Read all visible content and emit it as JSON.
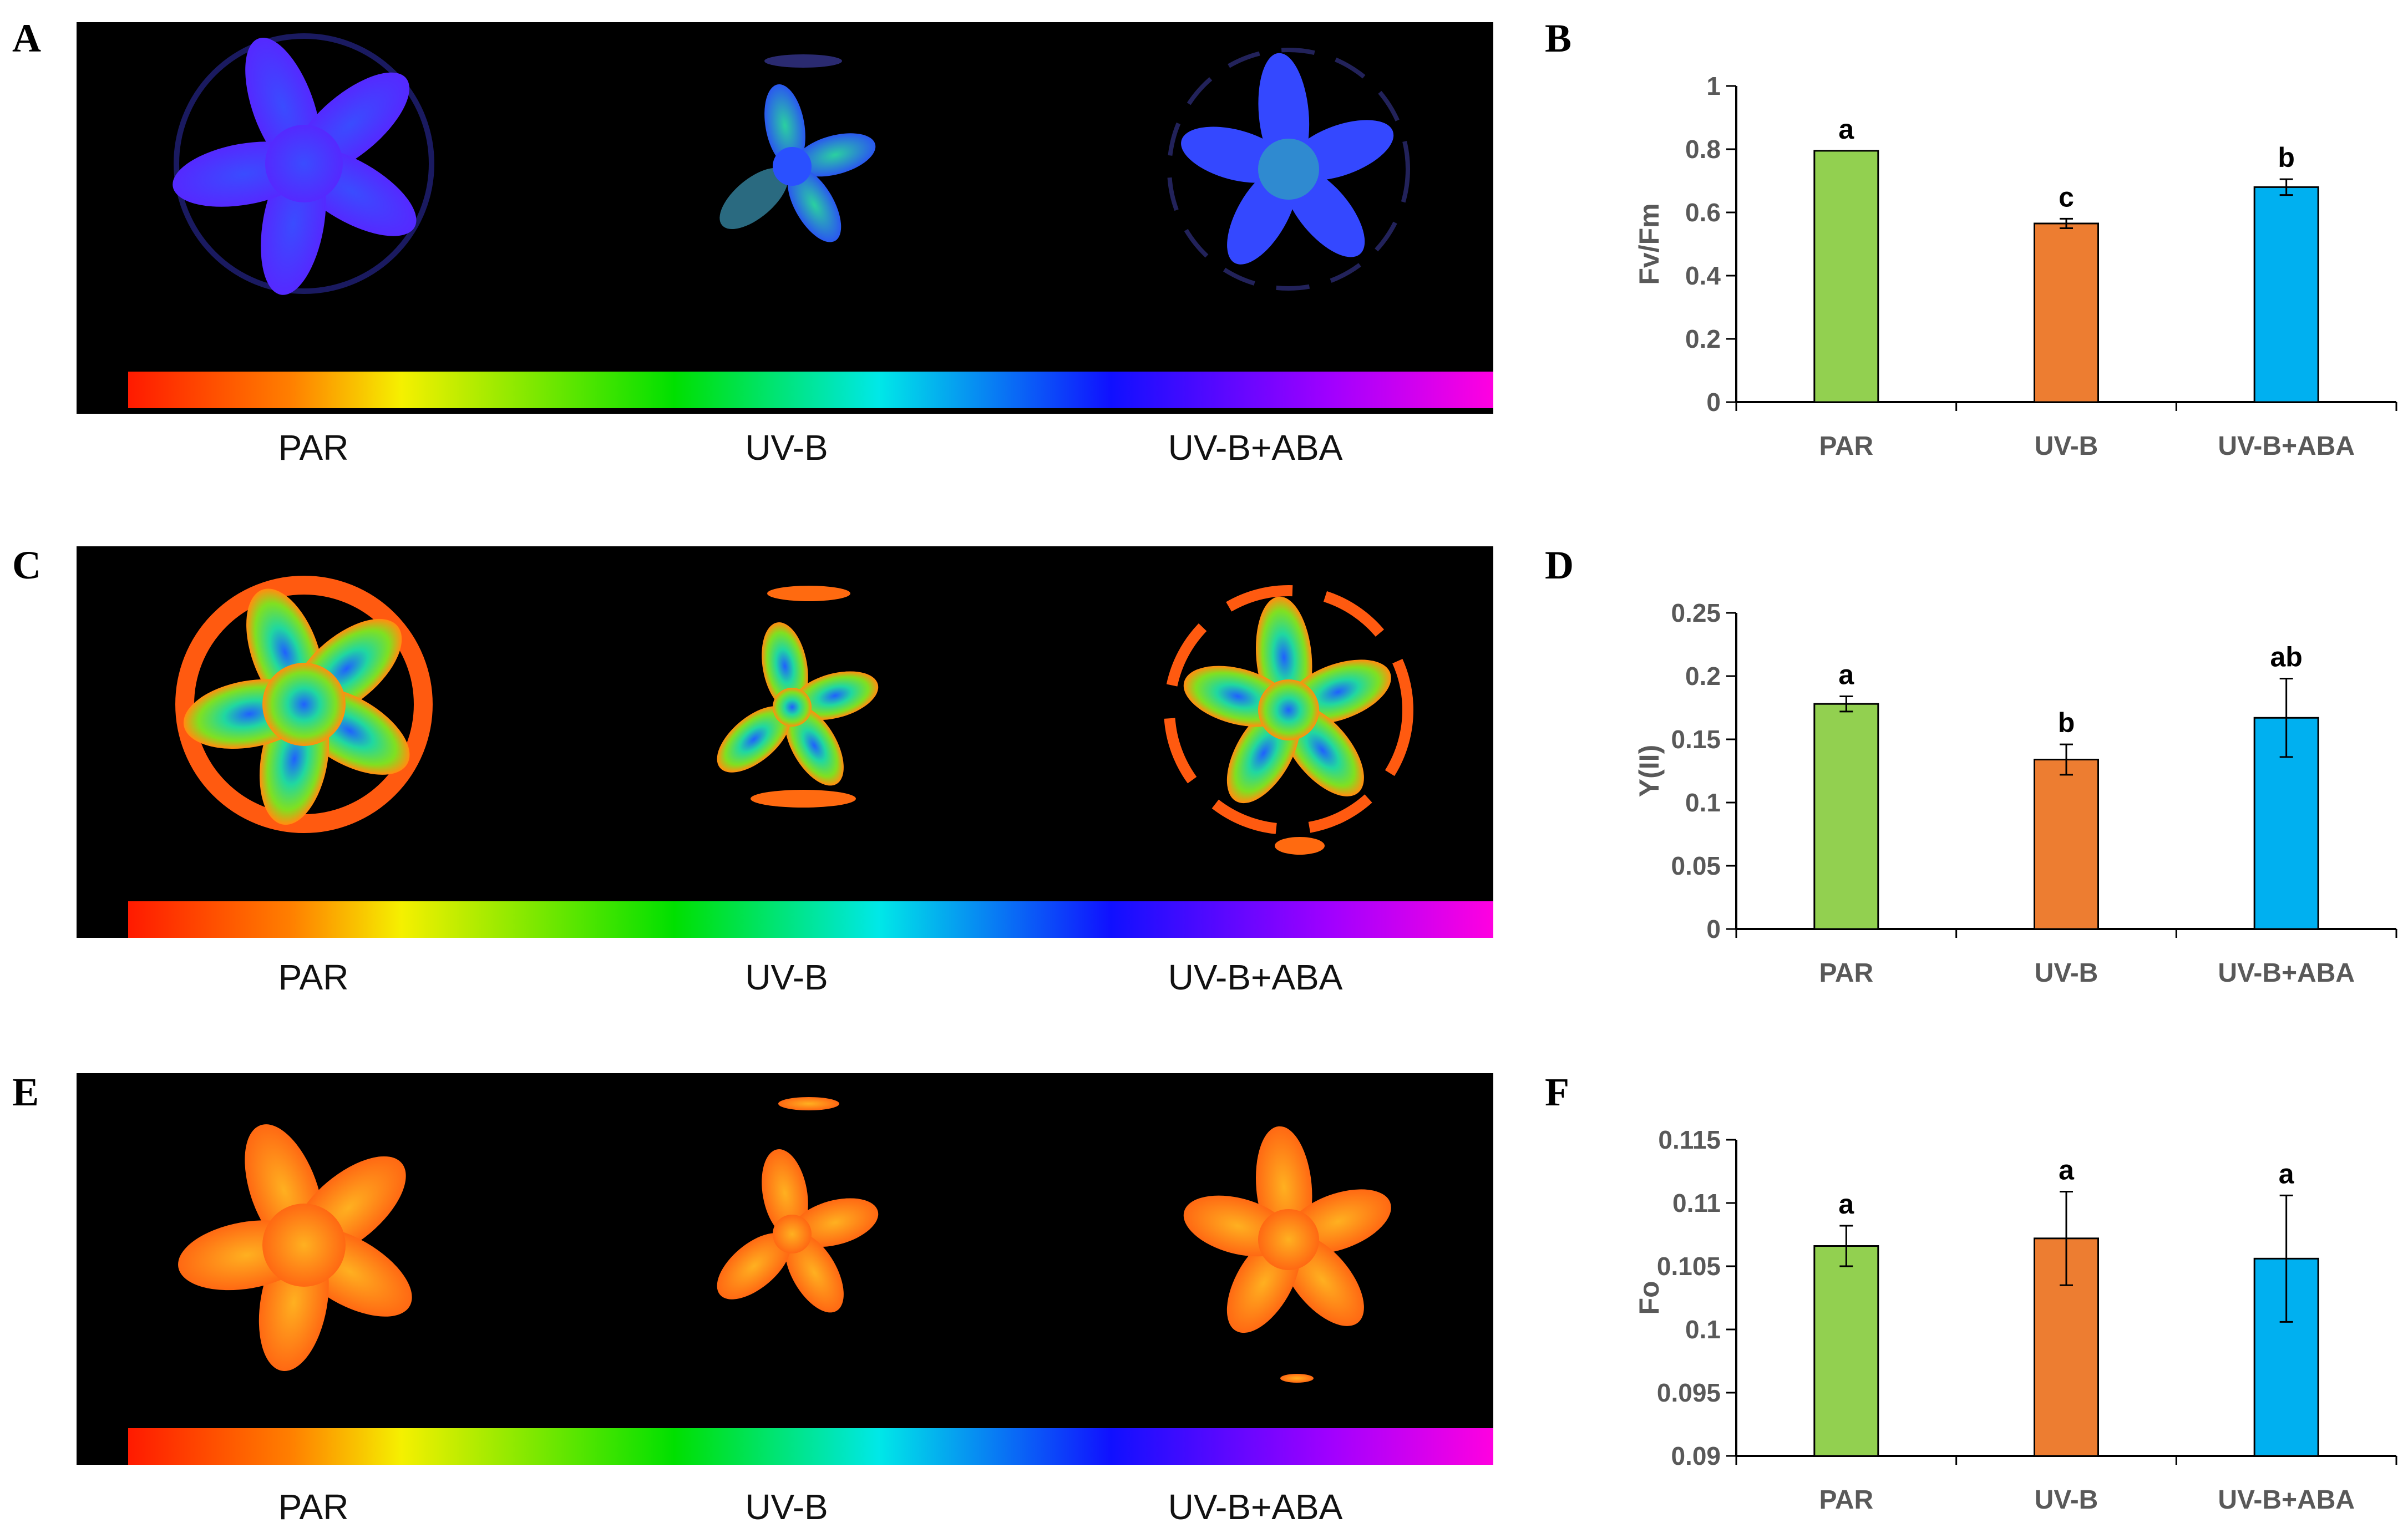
{
  "panels": {
    "A": {
      "letter": "A",
      "labels": [
        "PAR",
        "UV-B",
        "UV-B+ABA"
      ]
    },
    "B": {
      "letter": "B"
    },
    "C": {
      "letter": "C",
      "labels": [
        "PAR",
        "UV-B",
        "UV-B+ABA"
      ]
    },
    "D": {
      "letter": "D"
    },
    "E": {
      "letter": "E",
      "labels": [
        "PAR",
        "UV-B",
        "UV-B+ABA"
      ]
    },
    "F": {
      "letter": "F"
    }
  },
  "colors": {
    "PAR": "#92D050",
    "UV-B": "#ED7D31",
    "UV-B+ABA": "#00B0F0"
  },
  "chart_data": [
    {
      "type": "bar",
      "panel": "B",
      "title": "",
      "xlabel": "",
      "ylabel": "Fv/Fm",
      "categories": [
        "PAR",
        "UV-B",
        "UV-B+ABA"
      ],
      "values": [
        0.795,
        0.565,
        0.68
      ],
      "errors": [
        0.0,
        0.015,
        0.025
      ],
      "significance": [
        "a",
        "c",
        "b"
      ],
      "ylim": [
        0,
        1
      ],
      "yticks": [
        0,
        0.2,
        0.4,
        0.6,
        0.8,
        1
      ],
      "ytick_labels": [
        "0",
        "0.2",
        "0.4",
        "0.6",
        "0.8",
        "1"
      ],
      "grid": false
    },
    {
      "type": "bar",
      "panel": "D",
      "title": "",
      "xlabel": "",
      "ylabel": "Y(II)",
      "categories": [
        "PAR",
        "UV-B",
        "UV-B+ABA"
      ],
      "values": [
        0.178,
        0.134,
        0.167
      ],
      "errors": [
        0.006,
        0.012,
        0.031
      ],
      "significance": [
        "a",
        "b",
        "ab"
      ],
      "ylim": [
        0,
        0.25
      ],
      "yticks": [
        0,
        0.05,
        0.1,
        0.15,
        0.2,
        0.25
      ],
      "ytick_labels": [
        "0",
        "0.05",
        "0.1",
        "0.15",
        "0.2",
        "0.25"
      ],
      "grid": false
    },
    {
      "type": "bar",
      "panel": "F",
      "title": "",
      "xlabel": "",
      "ylabel": "Fo",
      "categories": [
        "PAR",
        "UV-B",
        "UV-B+ABA"
      ],
      "values": [
        0.1066,
        0.1072,
        0.1056
      ],
      "errors": [
        0.0016,
        0.0037,
        0.005
      ],
      "significance": [
        "a",
        "a",
        "a"
      ],
      "ylim": [
        0.09,
        0.115
      ],
      "yticks": [
        0.09,
        0.095,
        0.1,
        0.105,
        0.11,
        0.115
      ],
      "ytick_labels": [
        "0.09",
        "0.095",
        "0.1",
        "0.105",
        "0.11",
        "0.115"
      ],
      "grid": false
    }
  ]
}
